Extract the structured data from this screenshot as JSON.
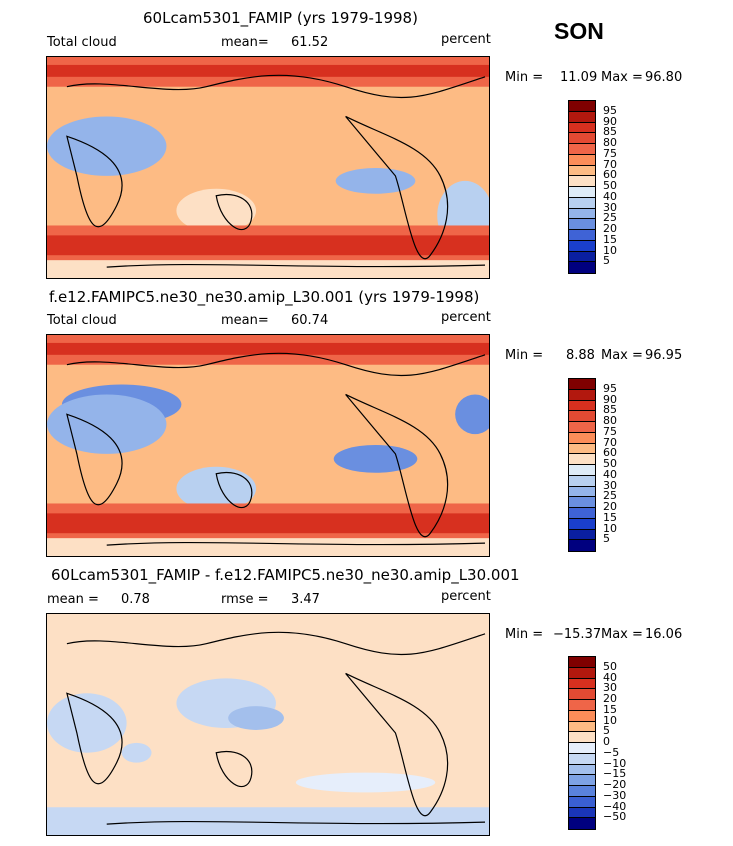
{
  "season": "SON",
  "panels": [
    {
      "id": "p1",
      "title": "60Lcam5301_FAMIP (yrs 1979-1998)",
      "left_label": "Total cloud",
      "mid_label": "mean=",
      "mid_value": "61.52",
      "right_label": "percent",
      "min_label": "Min =",
      "min_value": "11.09",
      "max_label": "Max =",
      "max_value": "96.80",
      "colorbar_labels": [
        "95",
        "90",
        "85",
        "80",
        "75",
        "70",
        "60",
        "50",
        "40",
        "30",
        "25",
        "20",
        "15",
        "10",
        "5"
      ]
    },
    {
      "id": "p2",
      "title": "f.e12.FAMIPC5.ne30_ne30.amip_L30.001 (yrs 1979-1998)",
      "left_label": "Total cloud",
      "mid_label": "mean=",
      "mid_value": "60.74",
      "right_label": "percent",
      "min_label": "Min =",
      "min_value": "8.88",
      "max_label": "Max =",
      "max_value": "96.95",
      "colorbar_labels": [
        "95",
        "90",
        "85",
        "80",
        "75",
        "70",
        "60",
        "50",
        "40",
        "30",
        "25",
        "20",
        "15",
        "10",
        "5"
      ]
    },
    {
      "id": "p3",
      "title": "60Lcam5301_FAMIP - f.e12.FAMIPC5.ne30_ne30.amip_L30.001",
      "left_label": "mean =",
      "left_value": "0.78",
      "mid_label": "rmse =",
      "mid_value": "3.47",
      "right_label": "percent",
      "min_label": "Min =",
      "min_value": "−15.37",
      "max_label": "Max =",
      "max_value": "16.06",
      "colorbar_labels": [
        "50",
        "40",
        "30",
        "20",
        "15",
        "10",
        "5",
        "0",
        "−5",
        "−10",
        "−15",
        "−20",
        "−30",
        "−40",
        "−50"
      ]
    }
  ],
  "colors": {
    "abs_scale": [
      "#7f0000",
      "#b2180e",
      "#d7301f",
      "#e34a33",
      "#ef6548",
      "#fc8d59",
      "#fdbb84",
      "#fde0c5",
      "#deebf7",
      "#b8d0f0",
      "#94b4ea",
      "#6a8fe0",
      "#3f63d6",
      "#1a3fcc",
      "#0a1fa0",
      "#00007f"
    ],
    "diff_scale": [
      "#7f0000",
      "#b2180e",
      "#d7301f",
      "#e34a33",
      "#ef6548",
      "#fc8d59",
      "#fdbb84",
      "#fde0c5",
      "#e6eefb",
      "#c6d8f3",
      "#a3bfec",
      "#7ea2e4",
      "#5a82dc",
      "#3a5fd2",
      "#1a35b8",
      "#00007f"
    ]
  }
}
